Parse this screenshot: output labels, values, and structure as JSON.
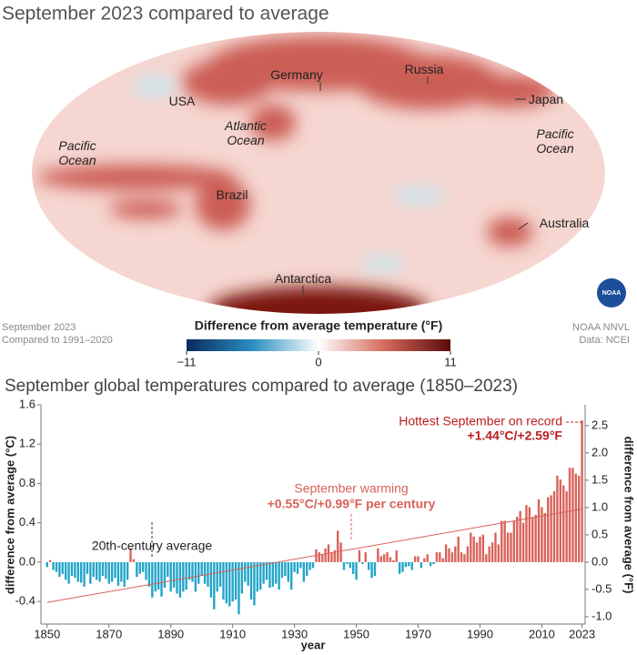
{
  "map": {
    "title": "September 2023 compared to average",
    "labels": [
      "Pacific Ocean",
      "USA",
      "Atlantic Ocean",
      "Germany",
      "Russia",
      "Japan",
      "Pacific Ocean",
      "Brazil",
      "Australia",
      "Antarctica"
    ],
    "note_left": [
      "September 2023",
      "Compared to 1991–2020"
    ],
    "note_right": [
      "NOAA NNVL",
      "Data: NCEI"
    ],
    "logo": "NOAA",
    "colorbar": {
      "title": "Difference from average temperature (°F)",
      "lim": [
        -11,
        11
      ],
      "ticks": [
        {
          "value": -11,
          "label": "−11"
        },
        0,
        11
      ],
      "colors": [
        "#0b2a5c",
        "#2a8fc0",
        "#ffffff",
        "#d46a5c",
        "#5a0a0a"
      ]
    }
  },
  "chart_data": {
    "type": "bar",
    "title": "September global temperatures compared to average (1850–2023)",
    "xlabel": "year",
    "ylabel": "difference from average (°C)",
    "y2label": "difference from average (°F)",
    "x": [
      1850,
      1851,
      1852,
      1853,
      1854,
      1855,
      1856,
      1857,
      1858,
      1859,
      1860,
      1861,
      1862,
      1863,
      1864,
      1865,
      1866,
      1867,
      1868,
      1869,
      1870,
      1871,
      1872,
      1873,
      1874,
      1875,
      1876,
      1877,
      1878,
      1879,
      1880,
      1881,
      1882,
      1883,
      1884,
      1885,
      1886,
      1887,
      1888,
      1889,
      1890,
      1891,
      1892,
      1893,
      1894,
      1895,
      1896,
      1897,
      1898,
      1899,
      1900,
      1901,
      1902,
      1903,
      1904,
      1905,
      1906,
      1907,
      1908,
      1909,
      1910,
      1911,
      1912,
      1913,
      1914,
      1915,
      1916,
      1917,
      1918,
      1919,
      1920,
      1921,
      1922,
      1923,
      1924,
      1925,
      1926,
      1927,
      1928,
      1929,
      1930,
      1931,
      1932,
      1933,
      1934,
      1935,
      1936,
      1937,
      1938,
      1939,
      1940,
      1941,
      1942,
      1943,
      1944,
      1945,
      1946,
      1947,
      1948,
      1949,
      1950,
      1951,
      1952,
      1953,
      1954,
      1955,
      1956,
      1957,
      1958,
      1959,
      1960,
      1961,
      1962,
      1963,
      1964,
      1965,
      1966,
      1967,
      1968,
      1969,
      1970,
      1971,
      1972,
      1973,
      1974,
      1975,
      1976,
      1977,
      1978,
      1979,
      1980,
      1981,
      1982,
      1983,
      1984,
      1985,
      1986,
      1987,
      1988,
      1989,
      1990,
      1991,
      1992,
      1993,
      1994,
      1995,
      1996,
      1997,
      1998,
      1999,
      2000,
      2001,
      2002,
      2003,
      2004,
      2005,
      2006,
      2007,
      2008,
      2009,
      2010,
      2011,
      2012,
      2013,
      2014,
      2015,
      2016,
      2017,
      2018,
      2019,
      2020,
      2021,
      2022,
      2023
    ],
    "values": [
      -0.05,
      0.02,
      -0.08,
      -0.1,
      -0.15,
      -0.12,
      -0.18,
      -0.22,
      -0.14,
      -0.16,
      -0.2,
      -0.21,
      -0.25,
      -0.12,
      -0.22,
      -0.15,
      -0.18,
      -0.2,
      -0.14,
      -0.17,
      -0.22,
      -0.2,
      -0.16,
      -0.24,
      -0.2,
      -0.25,
      -0.18,
      0.14,
      0.03,
      -0.15,
      -0.12,
      -0.1,
      -0.18,
      -0.25,
      -0.36,
      -0.3,
      -0.28,
      -0.35,
      -0.26,
      -0.15,
      -0.3,
      -0.26,
      -0.32,
      -0.36,
      -0.3,
      -0.28,
      -0.18,
      -0.2,
      -0.3,
      -0.22,
      -0.14,
      -0.22,
      -0.25,
      -0.36,
      -0.48,
      -0.3,
      -0.25,
      -0.38,
      -0.42,
      -0.45,
      -0.4,
      -0.38,
      -0.53,
      -0.32,
      -0.2,
      -0.24,
      -0.38,
      -0.44,
      -0.3,
      -0.28,
      -0.22,
      -0.18,
      -0.26,
      -0.25,
      -0.22,
      -0.28,
      -0.16,
      -0.14,
      -0.2,
      -0.28,
      -0.1,
      -0.12,
      -0.06,
      -0.2,
      -0.14,
      -0.08,
      -0.06,
      0.13,
      0.1,
      0.08,
      0.14,
      0.18,
      0.1,
      0.12,
      0.32,
      0.2,
      -0.08,
      -0.02,
      -0.06,
      -0.12,
      -0.18,
      0.12,
      -0.02,
      0.1,
      -0.08,
      -0.16,
      -0.14,
      0.14,
      0.06,
      0.08,
      0.1,
      0.05,
      0.02,
      0.12,
      -0.12,
      -0.1,
      -0.05,
      -0.04,
      -0.08,
      0.06,
      0.06,
      -0.06,
      0.04,
      0.08,
      -0.04,
      -0.02,
      0.1,
      0.1,
      0.04,
      0.18,
      0.14,
      0.1,
      0.16,
      0.26,
      0.1,
      0.08,
      0.16,
      0.3,
      0.26,
      0.2,
      0.26,
      0.28,
      0.08,
      0.16,
      0.2,
      0.3,
      0.18,
      0.42,
      0.42,
      0.3,
      0.3,
      0.42,
      0.46,
      0.52,
      0.4,
      0.58,
      0.56,
      0.46,
      0.48,
      0.64,
      0.56,
      0.5,
      0.66,
      0.68,
      0.72,
      0.88,
      0.84,
      0.78,
      0.72,
      0.96,
      0.96,
      0.9,
      0.88,
      1.44
    ],
    "positive_color": "#d9625a",
    "negative_color": "#22a5c8",
    "trend": {
      "x": [
        1850,
        2023
      ],
      "values": [
        -0.41,
        0.54
      ],
      "color": "#d9625a"
    },
    "xlim": [
      1848,
      2024
    ],
    "xticks": [
      1850,
      1870,
      1890,
      1910,
      1930,
      1950,
      1970,
      1990,
      2010,
      2023
    ],
    "ylim": [
      -0.63,
      1.6
    ],
    "yticks": [
      1.6,
      1.2,
      0.8,
      0.4,
      {
        "value": 0,
        "label": "0.0"
      },
      -0.4
    ],
    "y2lim": [
      -1.134,
      2.88
    ],
    "y2ticks": [
      2.5,
      {
        "value": 2,
        "label": "2.0"
      },
      1.5,
      {
        "value": 1,
        "label": "1.0"
      },
      0.5,
      {
        "value": 0,
        "label": "0.0"
      },
      -0.5,
      {
        "value": -1,
        "label": "-1.0"
      }
    ],
    "annotations": [
      "20th-century average",
      "September warming",
      "+0.55°C/+0.99°F per century",
      "Hottest September on record",
      "+1.44°C/+2.59°F"
    ]
  }
}
